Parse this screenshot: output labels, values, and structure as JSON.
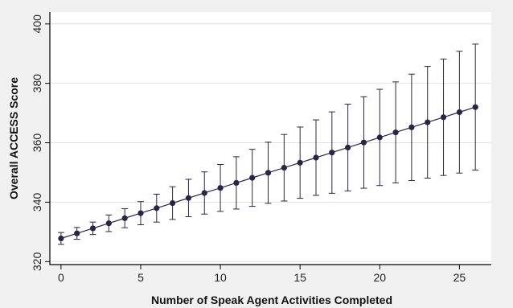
{
  "chart_data": {
    "type": "scatter",
    "title": "",
    "xlabel": "Number of Speak Agent Activities Completed",
    "ylabel": "Overall ACCESS Score",
    "xlim": [
      -0.7,
      27
    ],
    "ylim": [
      319,
      404
    ],
    "xticks": [
      0,
      5,
      10,
      15,
      20,
      25
    ],
    "yticks": [
      320,
      340,
      360,
      380,
      400
    ],
    "grid": true,
    "legend": "none",
    "x": [
      0,
      1,
      2,
      3,
      4,
      5,
      6,
      7,
      8,
      9,
      10,
      11,
      12,
      13,
      14,
      15,
      16,
      17,
      18,
      19,
      20,
      21,
      22,
      23,
      24,
      25,
      26
    ],
    "y": [
      327.8,
      329.5,
      331.2,
      332.9,
      334.6,
      336.3,
      338.0,
      339.7,
      341.4,
      343.1,
      344.8,
      346.5,
      348.2,
      349.9,
      351.6,
      353.3,
      355.0,
      356.7,
      358.4,
      360.1,
      361.8,
      363.5,
      365.2,
      366.9,
      368.6,
      370.3,
      372.0
    ],
    "ci_upper": [
      329.8,
      331.5,
      333.3,
      335.7,
      337.8,
      340.2,
      342.7,
      345.2,
      347.7,
      350.2,
      352.7,
      355.3,
      357.8,
      360.2,
      362.8,
      365.3,
      367.7,
      370.4,
      373.0,
      375.5,
      378.0,
      380.5,
      383.1,
      385.7,
      388.2,
      390.8,
      393.2
    ],
    "ci_lower": [
      325.8,
      327.5,
      329.1,
      330.1,
      331.4,
      332.4,
      333.3,
      334.2,
      335.1,
      336.0,
      336.9,
      337.7,
      338.6,
      339.6,
      340.4,
      341.3,
      342.3,
      343.0,
      343.8,
      344.7,
      345.6,
      346.5,
      347.3,
      348.1,
      349.0,
      349.8,
      350.8
    ],
    "colors": {
      "point": "#2b2545",
      "line": "#2b2545",
      "errorbar": "#2b2545",
      "grid": "#e0e0e6",
      "axis": "#000000"
    }
  }
}
